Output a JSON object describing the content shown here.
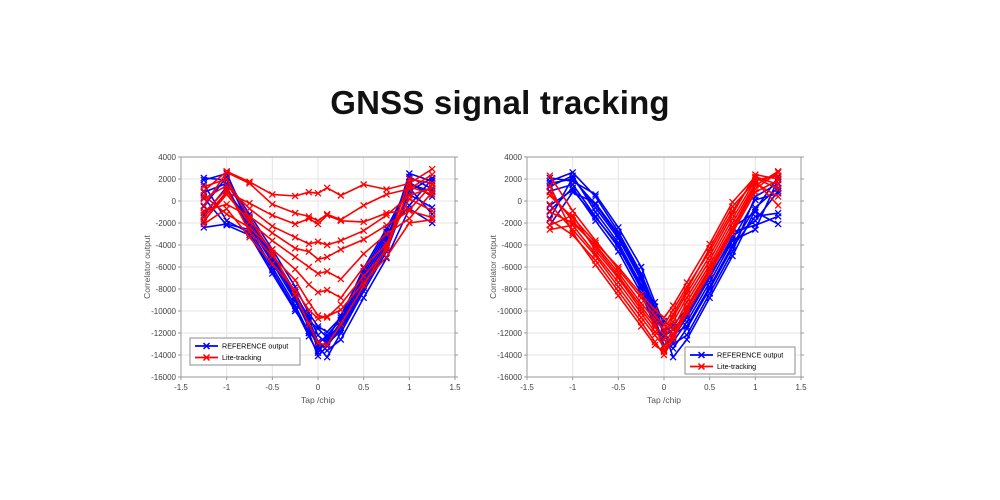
{
  "title": "GNSS signal tracking",
  "colors": {
    "reference": "#0000FF",
    "lite": "#FF0000",
    "grid": "#E4E4E4",
    "axis": "#9A9A9A",
    "tick_text": "#3F3F3F",
    "label_text": "#555555",
    "legend_border": "#8C8C8C",
    "legend_bg": "#FFFFFF",
    "title_color": "#111111"
  },
  "legend": {
    "reference_label": "REFERENCE output",
    "lite_label": "Lite-tracking"
  },
  "chart_data": [
    {
      "type": "line",
      "title": "",
      "xlabel": "Tap /chip",
      "ylabel": "Correlator output",
      "xlim": [
        -1.5,
        1.5
      ],
      "ylim": [
        -16000,
        4000
      ],
      "xticks": [
        "-1.5",
        "-1",
        "-0.5",
        "0",
        "0.5",
        "1",
        "1.5"
      ],
      "xtick_values": [
        -1.5,
        -1,
        -0.5,
        0,
        0.5,
        1,
        1.5
      ],
      "yticks": [
        "4000",
        "2000",
        "0",
        "-2000",
        "-4000",
        "-6000",
        "-8000",
        "-10000",
        "-12000",
        "-14000",
        "-16000"
      ],
      "ytick_values": [
        4000,
        2000,
        0,
        -2000,
        -4000,
        -6000,
        -8000,
        -10000,
        -12000,
        -14000,
        -16000
      ],
      "grid": true,
      "marker": "x",
      "legend_position": "southwest",
      "x": [
        -1.25,
        -1,
        -0.75,
        -0.5,
        -0.25,
        -0.1,
        0,
        0.1,
        0.25,
        0.5,
        0.75,
        1,
        1.25
      ],
      "series": [
        {
          "name": "REFERENCE output",
          "color_key": "reference",
          "values": [
            1900,
            2500,
            -2100,
            -5200,
            -8900,
            -11500,
            -13200,
            -14200,
            -12000,
            -8200,
            -4600,
            900,
            2100
          ]
        },
        {
          "name": "REFERENCE output",
          "color_key": "reference",
          "values": [
            -2400,
            -2100,
            -2600,
            -6000,
            -9500,
            -12000,
            -14100,
            -13200,
            -11500,
            -7600,
            -4000,
            2500,
            1800
          ]
        },
        {
          "name": "REFERENCE output",
          "color_key": "reference",
          "values": [
            800,
            1600,
            -1500,
            -4800,
            -8300,
            -10800,
            -12800,
            -13600,
            -12600,
            -8800,
            -5200,
            -700,
            -2000
          ]
        },
        {
          "name": "REFERENCE output",
          "color_key": "reference",
          "values": [
            -500,
            2200,
            -2300,
            -5600,
            -9100,
            -11200,
            -13500,
            -12800,
            -11000,
            -7000,
            -3400,
            1700,
            400
          ]
        },
        {
          "name": "REFERENCE output",
          "color_key": "reference",
          "values": [
            1500,
            -1800,
            -2900,
            -6300,
            -9800,
            -12300,
            -13800,
            -12600,
            -10400,
            -6400,
            -2800,
            1200,
            -1200
          ]
        },
        {
          "name": "REFERENCE output",
          "color_key": "reference",
          "values": [
            -1900,
            900,
            -1800,
            -5000,
            -8600,
            -10500,
            -12200,
            -13000,
            -11800,
            -7900,
            -4300,
            2200,
            1100
          ]
        },
        {
          "name": "REFERENCE output",
          "color_key": "reference",
          "values": [
            300,
            -2200,
            -3100,
            -6600,
            -10000,
            -11800,
            -13000,
            -12200,
            -10800,
            -6700,
            -3100,
            -400,
            2000
          ]
        },
        {
          "name": "REFERENCE output",
          "color_key": "reference",
          "values": [
            -1300,
            1300,
            -2500,
            -5400,
            -8700,
            -10900,
            -11600,
            -12400,
            -11300,
            -7300,
            -3700,
            600,
            -600
          ]
        },
        {
          "name": "REFERENCE output",
          "color_key": "reference",
          "values": [
            2100,
            1900,
            -1200,
            -4400,
            -7800,
            -10200,
            -11400,
            -11900,
            -10600,
            -6100,
            -2500,
            1500,
            900
          ]
        },
        {
          "name": "Lite-tracking",
          "color_key": "lite",
          "values": [
            900,
            2700,
            1750,
            600,
            450,
            800,
            700,
            1200,
            500,
            1500,
            1050,
            1600,
            2900
          ]
        },
        {
          "name": "Lite-tracking",
          "color_key": "lite",
          "values": [
            -400,
            2600,
            1600,
            -300,
            -1100,
            -1400,
            -1800,
            -1200,
            -1700,
            -400,
            600,
            1100,
            2400
          ]
        },
        {
          "name": "Lite-tracking",
          "color_key": "lite",
          "values": [
            -1500,
            800,
            -200,
            -1300,
            -2100,
            -1600,
            -2100,
            -1300,
            -1800,
            -1900,
            -1100,
            -800,
            1500
          ]
        },
        {
          "name": "Lite-tracking",
          "color_key": "lite",
          "values": [
            200,
            1400,
            -700,
            -2300,
            -3300,
            -3900,
            -3700,
            -4000,
            -3600,
            -2700,
            -1300,
            500,
            1200
          ]
        },
        {
          "name": "Lite-tracking",
          "color_key": "lite",
          "values": [
            -900,
            -300,
            -1400,
            -2900,
            -4300,
            -4600,
            -5300,
            -5100,
            -4400,
            -3500,
            -2200,
            -900,
            -1500
          ]
        },
        {
          "name": "Lite-tracking",
          "color_key": "lite",
          "values": [
            -1800,
            600,
            -1900,
            -3600,
            -5100,
            -6000,
            -6600,
            -6400,
            -7100,
            -4800,
            -3000,
            -1600,
            800
          ]
        },
        {
          "name": "Lite-tracking",
          "color_key": "lite",
          "values": [
            500,
            -1200,
            -2400,
            -4400,
            -6200,
            -7600,
            -8300,
            -8100,
            -8800,
            -6000,
            -3900,
            200,
            -900
          ]
        },
        {
          "name": "Lite-tracking",
          "color_key": "lite",
          "values": [
            -1100,
            1100,
            -2800,
            -5000,
            -7200,
            -9200,
            -10400,
            -10600,
            -9400,
            -6800,
            -4500,
            1300,
            600
          ]
        },
        {
          "name": "Lite-tracking",
          "color_key": "lite",
          "values": [
            -2100,
            -700,
            -3300,
            -5700,
            -8100,
            -9900,
            -10700,
            -10500,
            -9900,
            -7400,
            -5100,
            -2000,
            -1700
          ]
        },
        {
          "name": "Lite-tracking",
          "color_key": "lite",
          "values": [
            1300,
            2000,
            -1600,
            -4700,
            -8500,
            -11200,
            -12900,
            -13100,
            -11200,
            -7700,
            -4200,
            2000,
            1600
          ]
        }
      ]
    },
    {
      "type": "line",
      "title": "",
      "xlabel": "Tap /chip",
      "ylabel": "Correlator output",
      "xlim": [
        -1.5,
        1.5
      ],
      "ylim": [
        -16000,
        4000
      ],
      "xticks": [
        "-1.5",
        "-1",
        "-0.5",
        "0",
        "0.5",
        "1",
        "1.5"
      ],
      "xtick_values": [
        -1.5,
        -1,
        -0.5,
        0,
        0.5,
        1,
        1.5
      ],
      "yticks": [
        "4000",
        "2000",
        "0",
        "-2000",
        "-4000",
        "-6000",
        "-8000",
        "-10000",
        "-12000",
        "-14000",
        "-16000"
      ],
      "ytick_values": [
        4000,
        2000,
        0,
        -2000,
        -4000,
        -6000,
        -8000,
        -10000,
        -12000,
        -14000,
        -16000
      ],
      "grid": true,
      "marker": "x",
      "legend_position": "southeast",
      "x": [
        -1.25,
        -1,
        -0.75,
        -0.5,
        -0.25,
        -0.1,
        0,
        0.1,
        0.25,
        0.5,
        0.75,
        1,
        1.25
      ],
      "series": [
        {
          "name": "REFERENCE output",
          "color_key": "reference",
          "values": [
            1800,
            2600,
            400,
            -2800,
            -6600,
            -9600,
            -11800,
            -14200,
            -12600,
            -8800,
            -5000,
            -800,
            2200
          ]
        },
        {
          "name": "REFERENCE output",
          "color_key": "reference",
          "values": [
            -1600,
            2100,
            -600,
            -3400,
            -7200,
            -10400,
            -13600,
            -12800,
            -11000,
            -7400,
            -3600,
            -2600,
            2000
          ]
        },
        {
          "name": "REFERENCE output",
          "color_key": "reference",
          "values": [
            900,
            1500,
            -1400,
            -4200,
            -8000,
            -11000,
            -12600,
            -13400,
            -11600,
            -8000,
            -4200,
            -1400,
            -1100
          ]
        },
        {
          "name": "REFERENCE output",
          "color_key": "reference",
          "values": [
            -2200,
            800,
            -200,
            -3000,
            -6800,
            -10000,
            -12000,
            -13000,
            -12200,
            -8400,
            -4600,
            400,
            1600
          ]
        },
        {
          "name": "REFERENCE output",
          "color_key": "reference",
          "values": [
            1300,
            2300,
            -1000,
            -3800,
            -7600,
            -10800,
            -13100,
            -12400,
            -10600,
            -7000,
            -3200,
            -1800,
            900
          ]
        },
        {
          "name": "REFERENCE output",
          "color_key": "reference",
          "values": [
            -900,
            1200,
            -1800,
            -4600,
            -8400,
            -11400,
            -12300,
            -11700,
            -10200,
            -6600,
            -2800,
            -2200,
            -1400
          ]
        },
        {
          "name": "REFERENCE output",
          "color_key": "reference",
          "values": [
            2100,
            1800,
            600,
            -2400,
            -6000,
            -9200,
            -11200,
            -12100,
            -11400,
            -7800,
            -4000,
            -600,
            1200
          ]
        },
        {
          "name": "REFERENCE output",
          "color_key": "reference",
          "values": [
            -400,
            1000,
            -1500,
            -4000,
            -7800,
            -10600,
            -11900,
            -11300,
            -9800,
            -6200,
            -2400,
            -1000,
            -2100
          ]
        },
        {
          "name": "REFERENCE output",
          "color_key": "reference",
          "values": [
            1600,
            2000,
            -300,
            -3200,
            -7000,
            -9900,
            -10900,
            -11600,
            -10400,
            -6800,
            -3500,
            100,
            700
          ]
        },
        {
          "name": "Lite-tracking",
          "color_key": "lite",
          "values": [
            -2600,
            -2200,
            -4800,
            -7400,
            -10200,
            -11900,
            -12600,
            -11000,
            -8800,
            -5400,
            -1600,
            1900,
            2300
          ]
        },
        {
          "name": "Lite-tracking",
          "color_key": "lite",
          "values": [
            800,
            -1800,
            -4200,
            -6800,
            -9600,
            -11200,
            -13600,
            -12100,
            -9600,
            -6100,
            -2400,
            1400,
            2700
          ]
        },
        {
          "name": "Lite-tracking",
          "color_key": "lite",
          "values": [
            -1700,
            -3100,
            -5400,
            -8200,
            -11000,
            -12800,
            -14000,
            -12600,
            -10200,
            -6600,
            -2900,
            800,
            1900
          ]
        },
        {
          "name": "Lite-tracking",
          "color_key": "lite",
          "values": [
            2300,
            -900,
            -3600,
            -6200,
            -8800,
            -10400,
            -11300,
            -9900,
            -7800,
            -4600,
            -900,
            2100,
            1100
          ]
        },
        {
          "name": "Lite-tracking",
          "color_key": "lite",
          "values": [
            -300,
            -2600,
            -5000,
            -7800,
            -10600,
            -12200,
            -13200,
            -11600,
            -9200,
            -5800,
            -2000,
            1600,
            400
          ]
        },
        {
          "name": "Lite-tracking",
          "color_key": "lite",
          "values": [
            -2200,
            -1300,
            -4500,
            -7000,
            -9900,
            -11500,
            -12100,
            -10600,
            -8400,
            -5000,
            -1200,
            2400,
            2000
          ]
        },
        {
          "name": "Lite-tracking",
          "color_key": "lite",
          "values": [
            1400,
            -2900,
            -5800,
            -8600,
            -11400,
            -13100,
            -13700,
            -12300,
            -9900,
            -6300,
            -2600,
            1100,
            2600
          ]
        },
        {
          "name": "Lite-tracking",
          "color_key": "lite",
          "values": [
            -1000,
            -2000,
            -4000,
            -6500,
            -9300,
            -10800,
            -11700,
            -10300,
            -8100,
            -4300,
            -500,
            1800,
            -400
          ]
        },
        {
          "name": "Lite-tracking",
          "color_key": "lite",
          "values": [
            500,
            -1500,
            -3800,
            -6000,
            -8500,
            -9900,
            -10600,
            -9500,
            -7400,
            -3900,
            -100,
            2200,
            1500
          ]
        }
      ]
    }
  ]
}
